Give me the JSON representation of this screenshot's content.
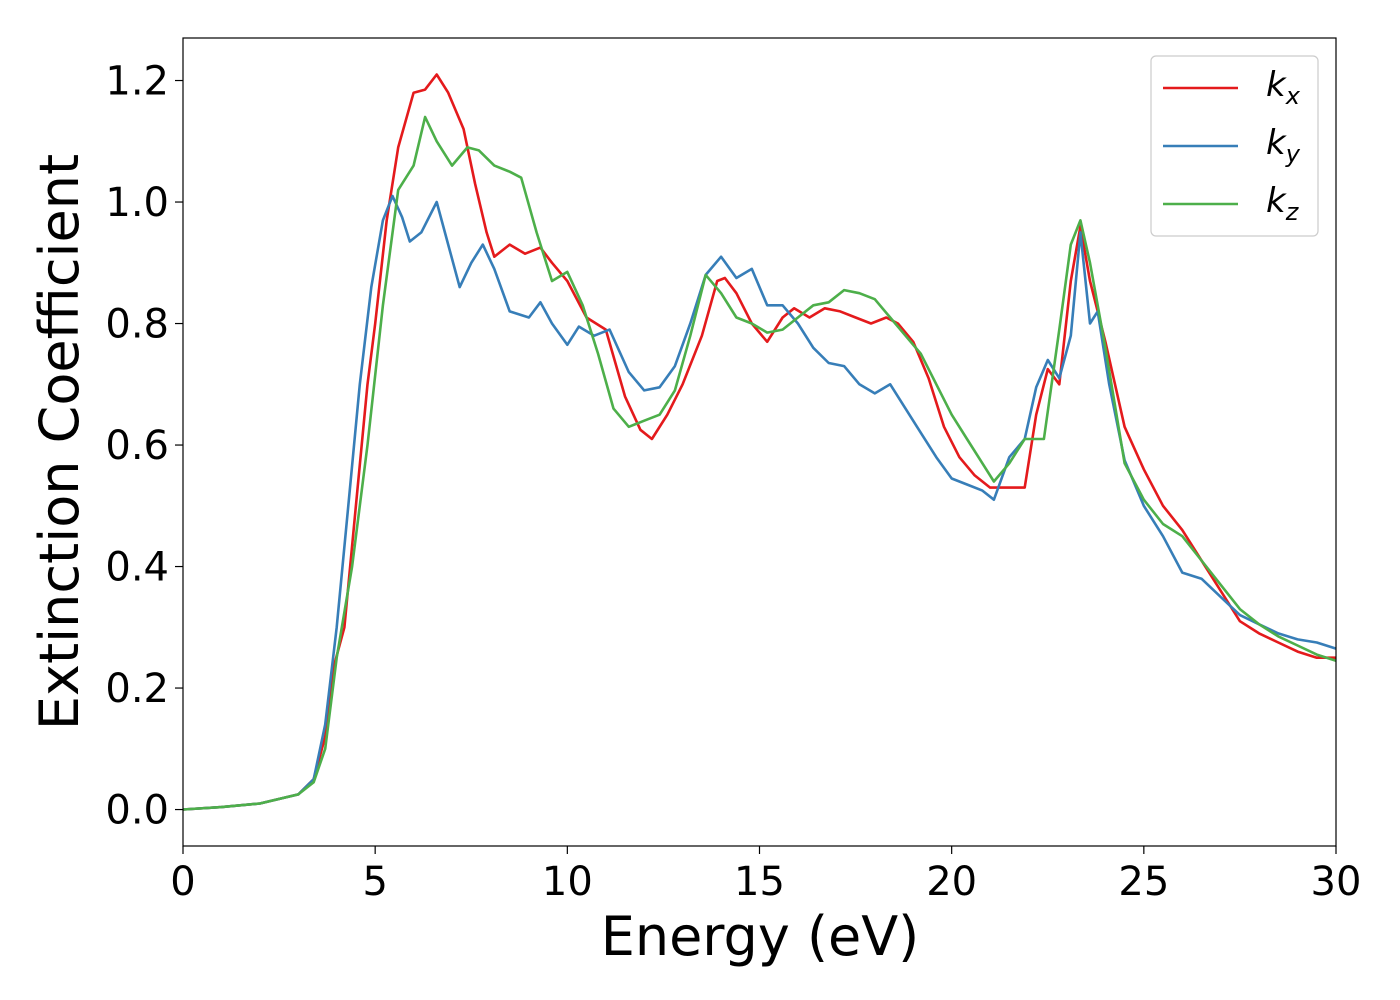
{
  "chart_data": {
    "type": "line",
    "xlabel": "Energy (eV)",
    "ylabel": "Extinction Coefficient",
    "xlim": [
      0,
      30
    ],
    "ylim": [
      -0.06,
      1.27
    ],
    "x_ticks": [
      0,
      5,
      10,
      15,
      20,
      25,
      30
    ],
    "x_tick_labels": [
      "0",
      "5",
      "10",
      "15",
      "20",
      "25",
      "30"
    ],
    "y_ticks": [
      0.0,
      0.2,
      0.4,
      0.6,
      0.8,
      1.0,
      1.2
    ],
    "y_tick_labels": [
      "0.0",
      "0.2",
      "0.4",
      "0.6",
      "0.8",
      "1.0",
      "1.2"
    ],
    "grid": false,
    "legend_position": "top-right",
    "series": [
      {
        "name": "k_x",
        "label_main": "k",
        "label_sub": "x",
        "color": "#e41a1c",
        "points": [
          [
            0,
            0
          ],
          [
            1,
            0.004
          ],
          [
            2,
            0.01
          ],
          [
            3,
            0.025
          ],
          [
            3.4,
            0.05
          ],
          [
            3.7,
            0.12
          ],
          [
            3.9,
            0.23
          ],
          [
            4.2,
            0.3
          ],
          [
            4.5,
            0.5
          ],
          [
            4.8,
            0.7
          ],
          [
            5.0,
            0.8
          ],
          [
            5.3,
            0.97
          ],
          [
            5.6,
            1.09
          ],
          [
            6.0,
            1.18
          ],
          [
            6.3,
            1.185
          ],
          [
            6.6,
            1.21
          ],
          [
            6.9,
            1.18
          ],
          [
            7.3,
            1.12
          ],
          [
            7.6,
            1.03
          ],
          [
            7.9,
            0.95
          ],
          [
            8.1,
            0.91
          ],
          [
            8.5,
            0.93
          ],
          [
            8.9,
            0.915
          ],
          [
            9.3,
            0.925
          ],
          [
            9.6,
            0.9
          ],
          [
            10.0,
            0.87
          ],
          [
            10.5,
            0.81
          ],
          [
            11.0,
            0.79
          ],
          [
            11.5,
            0.68
          ],
          [
            11.9,
            0.625
          ],
          [
            12.2,
            0.61
          ],
          [
            12.6,
            0.65
          ],
          [
            13.0,
            0.7
          ],
          [
            13.5,
            0.78
          ],
          [
            13.9,
            0.87
          ],
          [
            14.1,
            0.875
          ],
          [
            14.4,
            0.85
          ],
          [
            14.8,
            0.8
          ],
          [
            15.2,
            0.77
          ],
          [
            15.6,
            0.81
          ],
          [
            15.9,
            0.825
          ],
          [
            16.3,
            0.81
          ],
          [
            16.7,
            0.825
          ],
          [
            17.1,
            0.82
          ],
          [
            17.5,
            0.81
          ],
          [
            17.9,
            0.8
          ],
          [
            18.3,
            0.81
          ],
          [
            18.6,
            0.8
          ],
          [
            19.0,
            0.77
          ],
          [
            19.4,
            0.71
          ],
          [
            19.8,
            0.63
          ],
          [
            20.2,
            0.58
          ],
          [
            20.6,
            0.55
          ],
          [
            21.0,
            0.53
          ],
          [
            21.5,
            0.53
          ],
          [
            21.9,
            0.53
          ],
          [
            22.2,
            0.65
          ],
          [
            22.5,
            0.725
          ],
          [
            22.8,
            0.7
          ],
          [
            23.1,
            0.87
          ],
          [
            23.35,
            0.96
          ],
          [
            23.6,
            0.87
          ],
          [
            24.0,
            0.77
          ],
          [
            24.5,
            0.63
          ],
          [
            25.0,
            0.56
          ],
          [
            25.5,
            0.5
          ],
          [
            26.0,
            0.46
          ],
          [
            26.5,
            0.41
          ],
          [
            27.0,
            0.36
          ],
          [
            27.5,
            0.31
          ],
          [
            28.0,
            0.29
          ],
          [
            28.5,
            0.275
          ],
          [
            29.0,
            0.26
          ],
          [
            29.5,
            0.25
          ],
          [
            30,
            0.25
          ]
        ]
      },
      {
        "name": "k_y",
        "label_main": "k",
        "label_sub": "y",
        "color": "#377eb8",
        "points": [
          [
            0,
            0
          ],
          [
            1,
            0.004
          ],
          [
            2,
            0.01
          ],
          [
            3,
            0.025
          ],
          [
            3.4,
            0.05
          ],
          [
            3.7,
            0.14
          ],
          [
            4.0,
            0.3
          ],
          [
            4.3,
            0.5
          ],
          [
            4.6,
            0.7
          ],
          [
            4.9,
            0.86
          ],
          [
            5.2,
            0.97
          ],
          [
            5.45,
            1.01
          ],
          [
            5.7,
            0.975
          ],
          [
            5.9,
            0.935
          ],
          [
            6.2,
            0.95
          ],
          [
            6.6,
            1.0
          ],
          [
            6.9,
            0.93
          ],
          [
            7.2,
            0.86
          ],
          [
            7.5,
            0.9
          ],
          [
            7.8,
            0.93
          ],
          [
            8.1,
            0.89
          ],
          [
            8.5,
            0.82
          ],
          [
            9.0,
            0.81
          ],
          [
            9.3,
            0.835
          ],
          [
            9.6,
            0.8
          ],
          [
            10.0,
            0.765
          ],
          [
            10.3,
            0.795
          ],
          [
            10.7,
            0.78
          ],
          [
            11.1,
            0.79
          ],
          [
            11.6,
            0.72
          ],
          [
            12.0,
            0.69
          ],
          [
            12.4,
            0.695
          ],
          [
            12.8,
            0.73
          ],
          [
            13.2,
            0.8
          ],
          [
            13.6,
            0.88
          ],
          [
            14.0,
            0.91
          ],
          [
            14.4,
            0.875
          ],
          [
            14.8,
            0.89
          ],
          [
            15.2,
            0.83
          ],
          [
            15.6,
            0.83
          ],
          [
            16.0,
            0.8
          ],
          [
            16.4,
            0.76
          ],
          [
            16.8,
            0.735
          ],
          [
            17.2,
            0.73
          ],
          [
            17.6,
            0.7
          ],
          [
            18.0,
            0.685
          ],
          [
            18.4,
            0.7
          ],
          [
            18.8,
            0.66
          ],
          [
            19.2,
            0.62
          ],
          [
            19.6,
            0.58
          ],
          [
            20.0,
            0.545
          ],
          [
            20.4,
            0.535
          ],
          [
            20.8,
            0.525
          ],
          [
            21.1,
            0.51
          ],
          [
            21.5,
            0.58
          ],
          [
            21.9,
            0.61
          ],
          [
            22.2,
            0.695
          ],
          [
            22.5,
            0.74
          ],
          [
            22.8,
            0.71
          ],
          [
            23.1,
            0.78
          ],
          [
            23.35,
            0.95
          ],
          [
            23.6,
            0.8
          ],
          [
            23.8,
            0.82
          ],
          [
            24.1,
            0.7
          ],
          [
            24.5,
            0.575
          ],
          [
            25.0,
            0.5
          ],
          [
            25.5,
            0.45
          ],
          [
            26.0,
            0.39
          ],
          [
            26.5,
            0.38
          ],
          [
            27.0,
            0.35
          ],
          [
            27.5,
            0.32
          ],
          [
            28.0,
            0.305
          ],
          [
            28.5,
            0.29
          ],
          [
            29.0,
            0.28
          ],
          [
            29.5,
            0.275
          ],
          [
            30,
            0.265
          ]
        ]
      },
      {
        "name": "k_z",
        "label_main": "k",
        "label_sub": "z",
        "color": "#4daf4a",
        "points": [
          [
            0,
            0
          ],
          [
            1,
            0.004
          ],
          [
            2,
            0.01
          ],
          [
            3,
            0.025
          ],
          [
            3.4,
            0.045
          ],
          [
            3.7,
            0.1
          ],
          [
            4.0,
            0.25
          ],
          [
            4.4,
            0.4
          ],
          [
            4.8,
            0.6
          ],
          [
            5.2,
            0.83
          ],
          [
            5.6,
            1.02
          ],
          [
            6.0,
            1.06
          ],
          [
            6.3,
            1.14
          ],
          [
            6.6,
            1.1
          ],
          [
            7.0,
            1.06
          ],
          [
            7.4,
            1.09
          ],
          [
            7.7,
            1.085
          ],
          [
            8.1,
            1.06
          ],
          [
            8.5,
            1.05
          ],
          [
            8.8,
            1.04
          ],
          [
            9.2,
            0.95
          ],
          [
            9.6,
            0.87
          ],
          [
            10.0,
            0.885
          ],
          [
            10.4,
            0.83
          ],
          [
            10.8,
            0.75
          ],
          [
            11.2,
            0.66
          ],
          [
            11.6,
            0.63
          ],
          [
            12.0,
            0.64
          ],
          [
            12.4,
            0.65
          ],
          [
            12.8,
            0.69
          ],
          [
            13.2,
            0.78
          ],
          [
            13.6,
            0.88
          ],
          [
            14.0,
            0.85
          ],
          [
            14.4,
            0.81
          ],
          [
            14.8,
            0.8
          ],
          [
            15.2,
            0.785
          ],
          [
            15.6,
            0.79
          ],
          [
            16.0,
            0.81
          ],
          [
            16.4,
            0.83
          ],
          [
            16.8,
            0.835
          ],
          [
            17.2,
            0.855
          ],
          [
            17.6,
            0.85
          ],
          [
            18.0,
            0.84
          ],
          [
            18.4,
            0.81
          ],
          [
            18.8,
            0.78
          ],
          [
            19.2,
            0.75
          ],
          [
            19.6,
            0.7
          ],
          [
            20.0,
            0.65
          ],
          [
            20.4,
            0.61
          ],
          [
            20.8,
            0.57
          ],
          [
            21.1,
            0.54
          ],
          [
            21.5,
            0.57
          ],
          [
            21.9,
            0.61
          ],
          [
            22.4,
            0.61
          ],
          [
            22.8,
            0.79
          ],
          [
            23.1,
            0.93
          ],
          [
            23.35,
            0.97
          ],
          [
            23.6,
            0.9
          ],
          [
            24.0,
            0.76
          ],
          [
            24.5,
            0.57
          ],
          [
            25.0,
            0.51
          ],
          [
            25.5,
            0.47
          ],
          [
            26.0,
            0.45
          ],
          [
            26.5,
            0.41
          ],
          [
            27.0,
            0.37
          ],
          [
            27.5,
            0.33
          ],
          [
            28.0,
            0.305
          ],
          [
            28.5,
            0.285
          ],
          [
            29.0,
            0.27
          ],
          [
            29.5,
            0.255
          ],
          [
            30,
            0.245
          ]
        ]
      }
    ]
  }
}
